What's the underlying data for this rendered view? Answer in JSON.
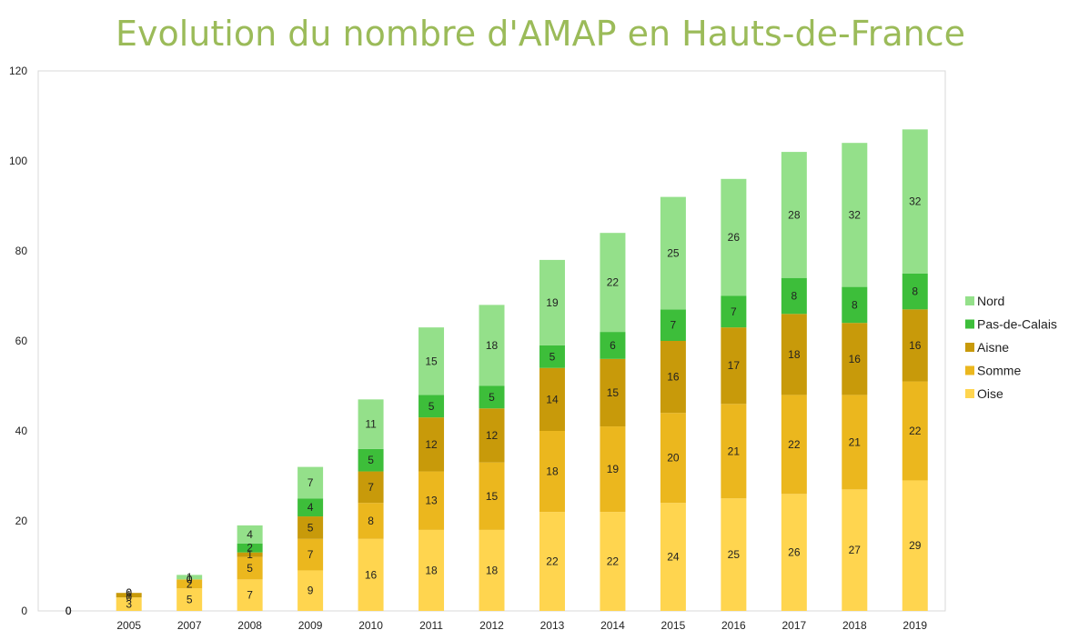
{
  "chart_data": {
    "type": "bar",
    "stacked": true,
    "title": "Evolution du nombre d'AMAP en Hauts-de-France",
    "categories": [
      "",
      "2005",
      "2007",
      "2008",
      "2009",
      "2010",
      "2011",
      "2012",
      "2013",
      "2014",
      "2015",
      "2016",
      "2017",
      "2018",
      "2019"
    ],
    "ylim": [
      0,
      120
    ],
    "yticks": [
      0,
      20,
      40,
      60,
      80,
      100,
      120
    ],
    "grid": false,
    "legend_position": "right",
    "series": [
      {
        "name": "Oise",
        "color": "#FFD54F",
        "values": [
          0,
          3,
          5,
          7,
          9,
          16,
          18,
          18,
          22,
          22,
          24,
          25,
          26,
          27,
          29
        ]
      },
      {
        "name": "Somme",
        "color": "#EBB71E",
        "values": [
          0,
          0,
          2,
          5,
          7,
          8,
          13,
          15,
          18,
          19,
          20,
          21,
          22,
          21,
          22
        ]
      },
      {
        "name": "Aisne",
        "color": "#C89A0A",
        "values": [
          0,
          1,
          0,
          1,
          5,
          7,
          12,
          12,
          14,
          15,
          16,
          17,
          18,
          16,
          16
        ]
      },
      {
        "name": "Pas-de-Calais",
        "color": "#3DBE3A",
        "values": [
          0,
          0,
          0,
          2,
          4,
          5,
          5,
          5,
          5,
          6,
          7,
          7,
          8,
          8,
          8
        ]
      },
      {
        "name": "Nord",
        "color": "#94E08A",
        "values": [
          0,
          0,
          1,
          4,
          7,
          11,
          15,
          18,
          19,
          22,
          25,
          26,
          28,
          32,
          32
        ]
      }
    ]
  }
}
